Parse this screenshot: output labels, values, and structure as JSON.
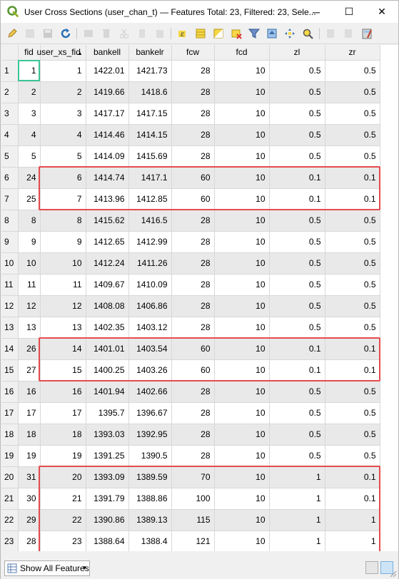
{
  "window": {
    "title": "User Cross Sections (user_chan_t) — Features Total: 23, Filtered: 23, Sele...",
    "minimize_glyph": "─",
    "maximize_glyph": "☐",
    "close_glyph": "✕"
  },
  "toolbar": {
    "icons": [
      "pencil-icon",
      "multi-edit-icon",
      "save-icon",
      "reload-icon",
      "add-feature-icon",
      "delete-icon",
      "cut-icon",
      "copy-icon",
      "paste-icon",
      "expression-select-icon",
      "select-all-icon",
      "invert-selection-icon",
      "deselect-icon",
      "filter-icon",
      "move-selection-top-icon",
      "pan-to-selection-icon",
      "zoom-to-selection-icon",
      "new-field-icon",
      "delete-field-icon",
      "field-calculator-icon"
    ]
  },
  "table": {
    "columns": [
      "fid",
      "user_xs_fid",
      "bankell",
      "bankelr",
      "fcw",
      "fcd",
      "zl",
      "zr"
    ],
    "sorted_column": "user_xs_fid",
    "sort_glyph": "▲",
    "rows": [
      {
        "n": "1",
        "c": [
          "1",
          "1",
          "1422.01",
          "1421.73",
          "28",
          "10",
          "0.5",
          "0.5"
        ]
      },
      {
        "n": "2",
        "c": [
          "2",
          "2",
          "1419.66",
          "1418.6",
          "28",
          "10",
          "0.5",
          "0.5"
        ]
      },
      {
        "n": "3",
        "c": [
          "3",
          "3",
          "1417.17",
          "1417.15",
          "28",
          "10",
          "0.5",
          "0.5"
        ]
      },
      {
        "n": "4",
        "c": [
          "4",
          "4",
          "1414.46",
          "1414.15",
          "28",
          "10",
          "0.5",
          "0.5"
        ]
      },
      {
        "n": "5",
        "c": [
          "5",
          "5",
          "1414.09",
          "1415.69",
          "28",
          "10",
          "0.5",
          "0.5"
        ]
      },
      {
        "n": "6",
        "c": [
          "24",
          "6",
          "1414.74",
          "1417.1",
          "60",
          "10",
          "0.1",
          "0.1"
        ]
      },
      {
        "n": "7",
        "c": [
          "25",
          "7",
          "1413.96",
          "1412.85",
          "60",
          "10",
          "0.1",
          "0.1"
        ]
      },
      {
        "n": "8",
        "c": [
          "8",
          "8",
          "1415.62",
          "1416.5",
          "28",
          "10",
          "0.5",
          "0.5"
        ]
      },
      {
        "n": "9",
        "c": [
          "9",
          "9",
          "1412.65",
          "1412.99",
          "28",
          "10",
          "0.5",
          "0.5"
        ]
      },
      {
        "n": "10",
        "c": [
          "10",
          "10",
          "1412.24",
          "1411.26",
          "28",
          "10",
          "0.5",
          "0.5"
        ]
      },
      {
        "n": "11",
        "c": [
          "11",
          "11",
          "1409.67",
          "1410.09",
          "28",
          "10",
          "0.5",
          "0.5"
        ]
      },
      {
        "n": "12",
        "c": [
          "12",
          "12",
          "1408.08",
          "1406.86",
          "28",
          "10",
          "0.5",
          "0.5"
        ]
      },
      {
        "n": "13",
        "c": [
          "13",
          "13",
          "1402.35",
          "1403.12",
          "28",
          "10",
          "0.5",
          "0.5"
        ]
      },
      {
        "n": "14",
        "c": [
          "26",
          "14",
          "1401.01",
          "1403.54",
          "60",
          "10",
          "0.1",
          "0.1"
        ]
      },
      {
        "n": "15",
        "c": [
          "27",
          "15",
          "1400.25",
          "1403.26",
          "60",
          "10",
          "0.1",
          "0.1"
        ]
      },
      {
        "n": "16",
        "c": [
          "16",
          "16",
          "1401.94",
          "1402.66",
          "28",
          "10",
          "0.5",
          "0.5"
        ]
      },
      {
        "n": "17",
        "c": [
          "17",
          "17",
          "1395.7",
          "1396.67",
          "28",
          "10",
          "0.5",
          "0.5"
        ]
      },
      {
        "n": "18",
        "c": [
          "18",
          "18",
          "1393.03",
          "1392.95",
          "28",
          "10",
          "0.5",
          "0.5"
        ]
      },
      {
        "n": "19",
        "c": [
          "19",
          "19",
          "1391.25",
          "1390.5",
          "28",
          "10",
          "0.5",
          "0.5"
        ]
      },
      {
        "n": "20",
        "c": [
          "31",
          "20",
          "1393.09",
          "1389.59",
          "70",
          "10",
          "1",
          "0.1"
        ]
      },
      {
        "n": "21",
        "c": [
          "30",
          "21",
          "1391.79",
          "1388.86",
          "100",
          "10",
          "1",
          "0.1"
        ]
      },
      {
        "n": "22",
        "c": [
          "29",
          "22",
          "1390.86",
          "1389.13",
          "115",
          "10",
          "1",
          "1"
        ]
      },
      {
        "n": "23",
        "c": [
          "28",
          "23",
          "1388.64",
          "1388.4",
          "121",
          "10",
          "1",
          "1"
        ]
      }
    ],
    "highlight_color": "#e54b4f",
    "current_cell_color": "#3cc796"
  },
  "statusbar": {
    "show_features_label": "Show All Features"
  }
}
